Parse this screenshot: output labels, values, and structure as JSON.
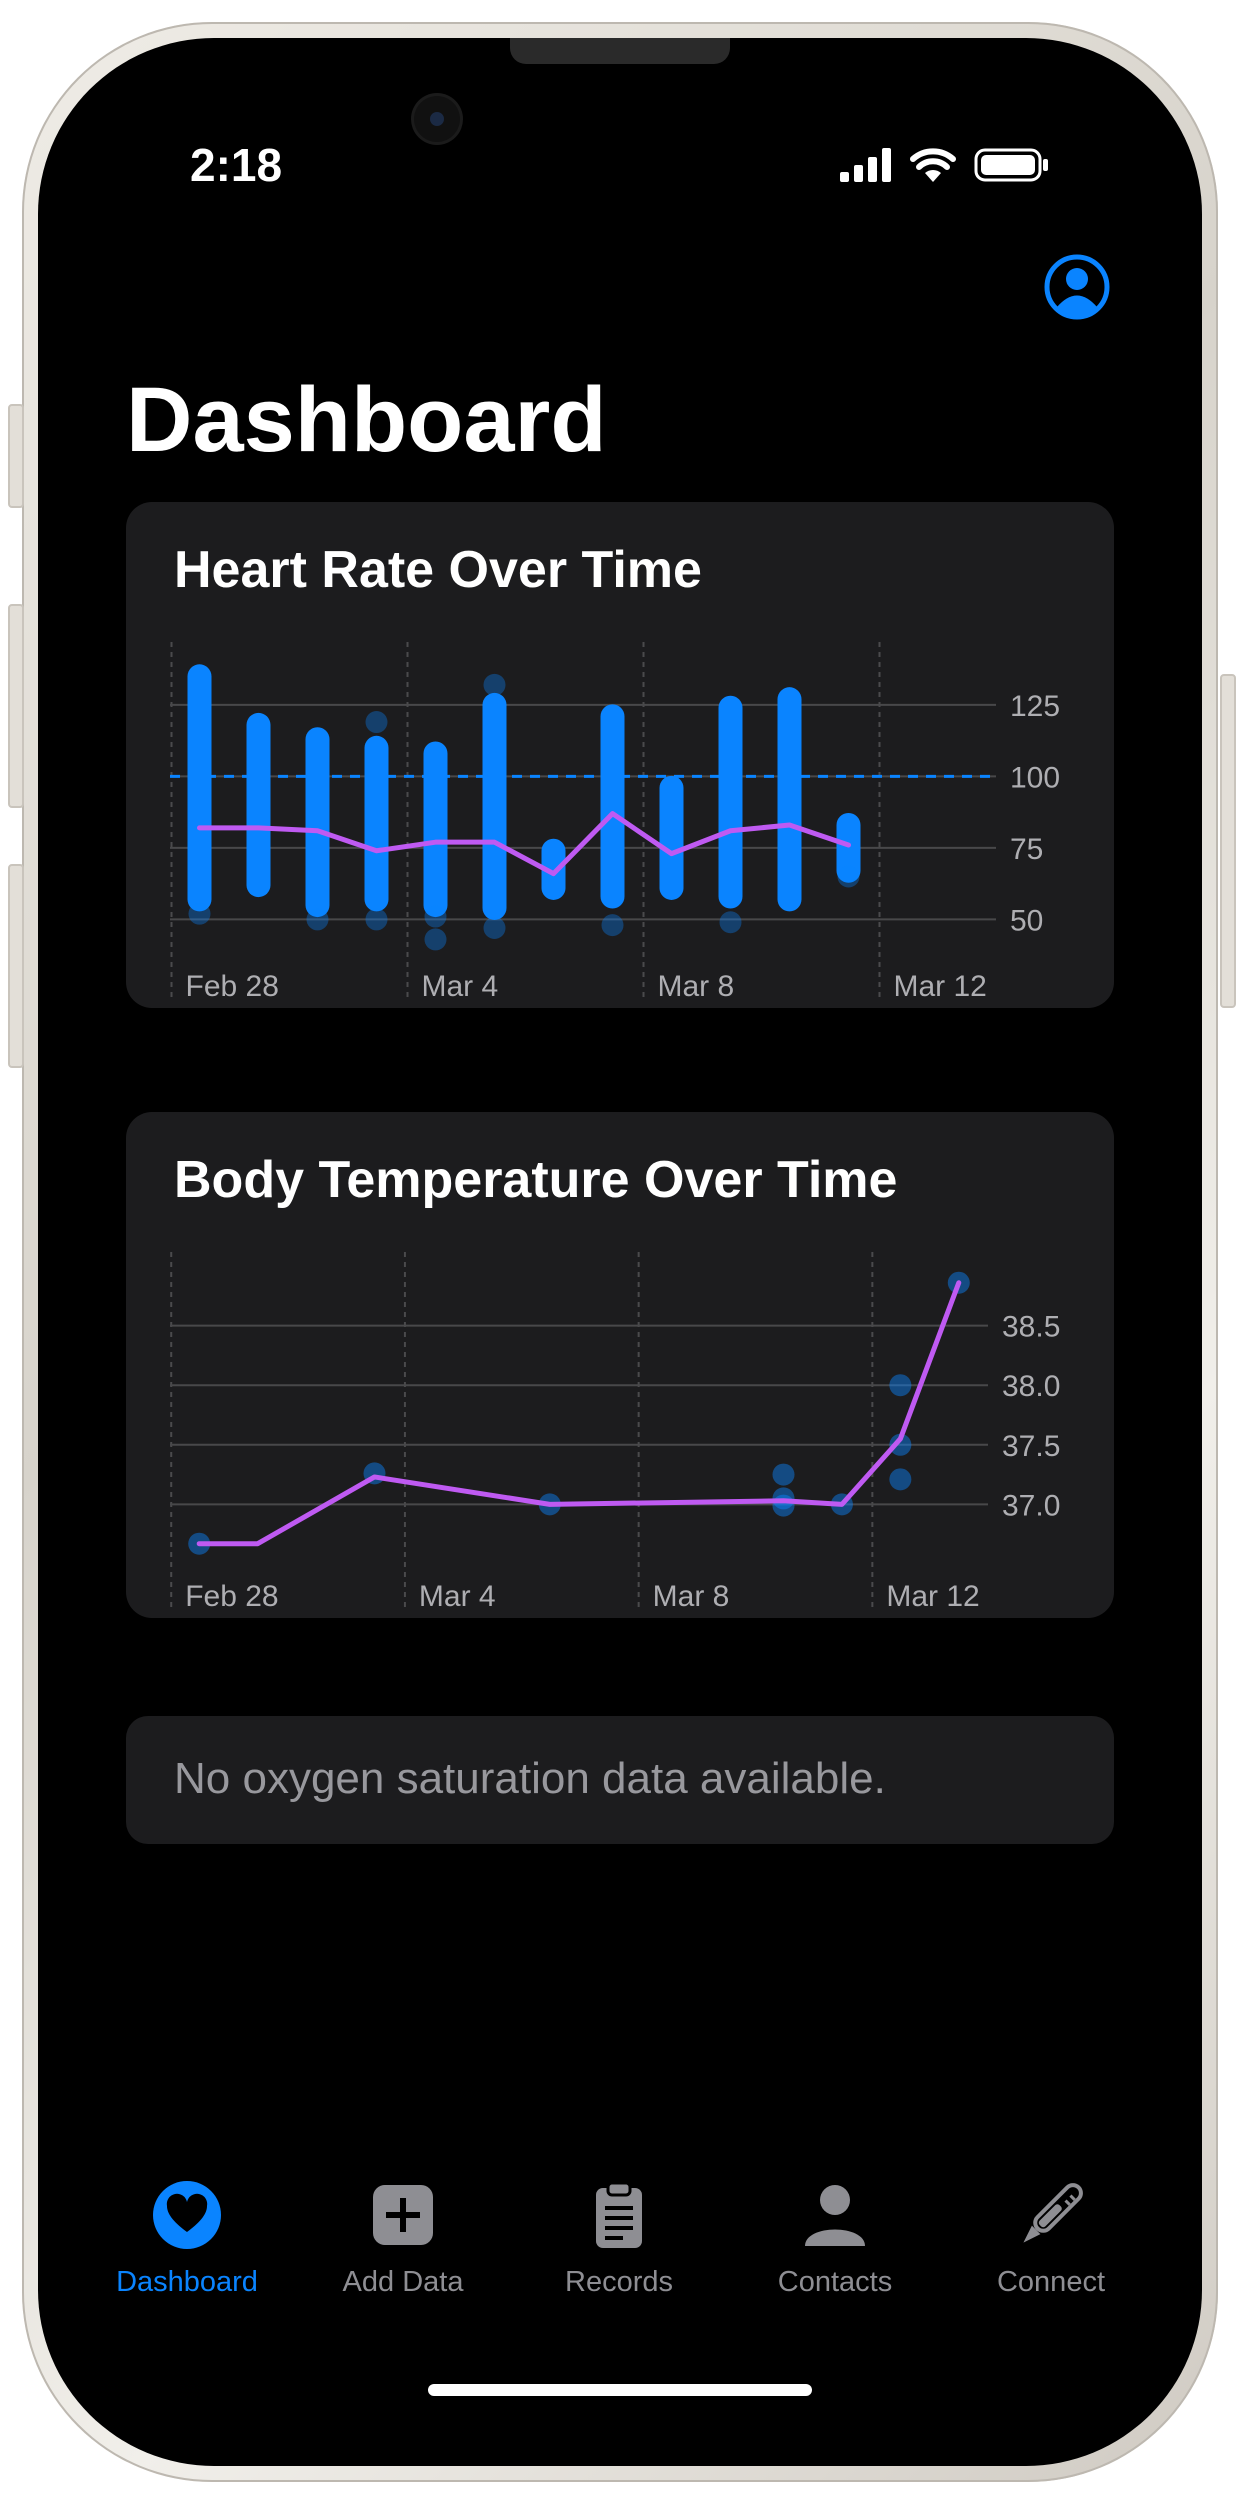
{
  "status_bar": {
    "time": "2:18"
  },
  "header": {
    "title": "Dashboard"
  },
  "colors": {
    "accent": "#0a84ff",
    "line": "#bf5af2",
    "card": "#1c1c1e",
    "tab_inactive": "#8e8e93"
  },
  "heart_rate_card": {
    "title": "Heart Rate Over Time",
    "chart_data": {
      "type": "scatter",
      "title": "Heart Rate Over Time",
      "xlim": [
        -0.5,
        13.5
      ],
      "ylim": [
        40,
        140
      ],
      "x_tick_labels": [
        {
          "x": 0,
          "label": "Feb 28"
        },
        {
          "x": 4,
          "label": "Mar 4"
        },
        {
          "x": 8,
          "label": "Mar 8"
        },
        {
          "x": 12,
          "label": "Mar 12"
        }
      ],
      "y_ticks": [
        50,
        75,
        100,
        125
      ],
      "reference_line": 100,
      "ranges": [
        {
          "x": 0,
          "min": 57,
          "max": 135
        },
        {
          "x": 1,
          "min": 62,
          "max": 118
        },
        {
          "x": 2,
          "min": 55,
          "max": 113
        },
        {
          "x": 3,
          "min": 57,
          "max": 110
        },
        {
          "x": 4,
          "min": 55,
          "max": 108
        },
        {
          "x": 5,
          "min": 54,
          "max": 125
        },
        {
          "x": 6,
          "min": 61,
          "max": 74
        },
        {
          "x": 7,
          "min": 58,
          "max": 121
        },
        {
          "x": 8,
          "min": 61,
          "max": 96
        },
        {
          "x": 9,
          "min": 58,
          "max": 124
        },
        {
          "x": 10,
          "min": 57,
          "max": 127
        },
        {
          "x": 11,
          "min": 67,
          "max": 83
        }
      ],
      "outliers": [
        {
          "x": 0,
          "y": 52
        },
        {
          "x": 2,
          "y": 50
        },
        {
          "x": 3,
          "y": 50
        },
        {
          "x": 3,
          "y": 119
        },
        {
          "x": 4,
          "y": 43
        },
        {
          "x": 4,
          "y": 51
        },
        {
          "x": 5,
          "y": 47
        },
        {
          "x": 5,
          "y": 132
        },
        {
          "x": 7,
          "y": 48
        },
        {
          "x": 9,
          "y": 49
        },
        {
          "x": 11,
          "y": 65
        }
      ],
      "series": [
        {
          "values": [
            {
              "x": 0,
              "y": 82
            },
            {
              "x": 1,
              "y": 82
            },
            {
              "x": 2,
              "y": 81
            },
            {
              "x": 3,
              "y": 74
            },
            {
              "x": 4,
              "y": 77
            },
            {
              "x": 5,
              "y": 77
            },
            {
              "x": 6,
              "y": 66
            },
            {
              "x": 7,
              "y": 87
            },
            {
              "x": 8,
              "y": 73
            },
            {
              "x": 9,
              "y": 81
            },
            {
              "x": 10,
              "y": 83
            },
            {
              "x": 11,
              "y": 76
            }
          ]
        }
      ],
      "grid": true,
      "y_axis_side": "right"
    }
  },
  "body_temp_card": {
    "title": "Body Temperature Over Time",
    "chart_data": {
      "type": "line",
      "title": "Body Temperature Over Time",
      "xlim": [
        -0.5,
        13.5
      ],
      "ylim": [
        36.55,
        38.95
      ],
      "x_tick_labels": [
        {
          "x": 0,
          "label": "Feb 28"
        },
        {
          "x": 4,
          "label": "Mar 4"
        },
        {
          "x": 8,
          "label": "Mar 8"
        },
        {
          "x": 12,
          "label": "Mar 12"
        }
      ],
      "y_ticks": [
        37.0,
        37.5,
        38.0,
        38.5
      ],
      "points": [
        {
          "x": 0,
          "y": 36.67
        },
        {
          "x": 3,
          "y": 37.26
        },
        {
          "x": 6,
          "y": 37.0
        },
        {
          "x": 10,
          "y": 37.25
        },
        {
          "x": 10,
          "y": 37.05
        },
        {
          "x": 10,
          "y": 36.99
        },
        {
          "x": 11,
          "y": 37.0
        },
        {
          "x": 12,
          "y": 37.21
        },
        {
          "x": 12,
          "y": 37.5
        },
        {
          "x": 12,
          "y": 38.0
        },
        {
          "x": 13,
          "y": 38.86
        }
      ],
      "series": [
        {
          "values": [
            {
              "x": 0,
              "y": 36.67
            },
            {
              "x": 1,
              "y": 36.67
            },
            {
              "x": 3,
              "y": 37.23
            },
            {
              "x": 6,
              "y": 37.0
            },
            {
              "x": 10,
              "y": 37.03
            },
            {
              "x": 11,
              "y": 37.0
            },
            {
              "x": 12,
              "y": 37.55
            },
            {
              "x": 13,
              "y": 38.86
            }
          ]
        }
      ],
      "grid": true,
      "y_axis_side": "right"
    }
  },
  "oxygen_card": {
    "message": "No oxygen saturation data available."
  },
  "tabs": [
    {
      "label": "Dashboard",
      "icon": "heart-circle-icon",
      "active": true
    },
    {
      "label": "Add Data",
      "icon": "plus-square-icon",
      "active": false
    },
    {
      "label": "Records",
      "icon": "clipboard-icon",
      "active": false
    },
    {
      "label": "Contacts",
      "icon": "person-icon",
      "active": false
    },
    {
      "label": "Connect",
      "icon": "thermometer-icon",
      "active": false
    }
  ]
}
